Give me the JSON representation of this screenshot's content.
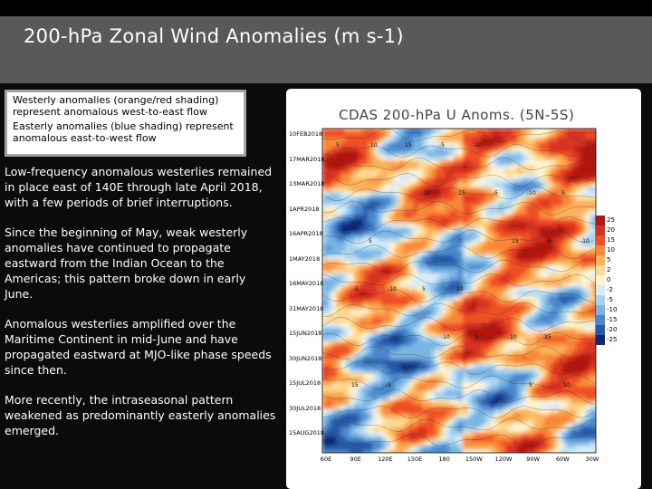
{
  "slide": {
    "title": "200-hPa Zonal Wind Anomalies (m s-1)"
  },
  "legend": {
    "westerly": "Westerly anomalies (orange/red shading) represent anomalous west-to-east flow",
    "easterly": "Easterly anomalies (blue shading) represent anomalous east-to-west flow"
  },
  "bullets": [
    "Low-frequency anomalous westerlies remained in place east of 140E through late April 2018, with a few periods of brief interruptions.",
    "Since the beginning of May, weak westerly anomalies have continued to propagate eastward from the Indian Ocean to the Americas; this pattern broke down in early June.",
    "Anomalous westerlies amplified over the Maritime Continent in mid-June and have propagated eastward at MJO-like phase speeds since then.",
    "More recently, the intraseasonal pattern weakened as predominantly easterly anomalies emerged."
  ],
  "chart_data": {
    "type": "heatmap",
    "title": "CDAS 200-hPa U Anoms. (5N-5S)",
    "y_tick_labels": [
      "10FEB2018",
      "17MAR2018",
      "13MAR2018",
      "1APR2018",
      "16APR2018",
      "1MAY2018",
      "16MAY2018",
      "31MAY2018",
      "15JUN2018",
      "30JUN2018",
      "15JUL2018",
      "30JUL2018",
      "15AUG2018"
    ],
    "x_tick_labels": [
      "60E",
      "90E",
      "120E",
      "150E",
      "180",
      "150W",
      "120W",
      "90W",
      "60W",
      "30W"
    ],
    "colorbar_levels": [
      "25",
      "20",
      "15",
      "10",
      "5",
      "2",
      "0",
      "-2",
      "-5",
      "-10",
      "-15",
      "-20",
      "-25"
    ],
    "colorbar_colors": [
      "#b01810",
      "#d83020",
      "#f05028",
      "#f88838",
      "#fcb058",
      "#fdd890",
      "#fff4d0",
      "#d8ecf8",
      "#a8d4f0",
      "#78b4e4",
      "#4888cc",
      "#2858a8",
      "#102878"
    ],
    "contour_labels": [
      "5",
      "10",
      "15",
      "-5",
      "-10"
    ]
  }
}
